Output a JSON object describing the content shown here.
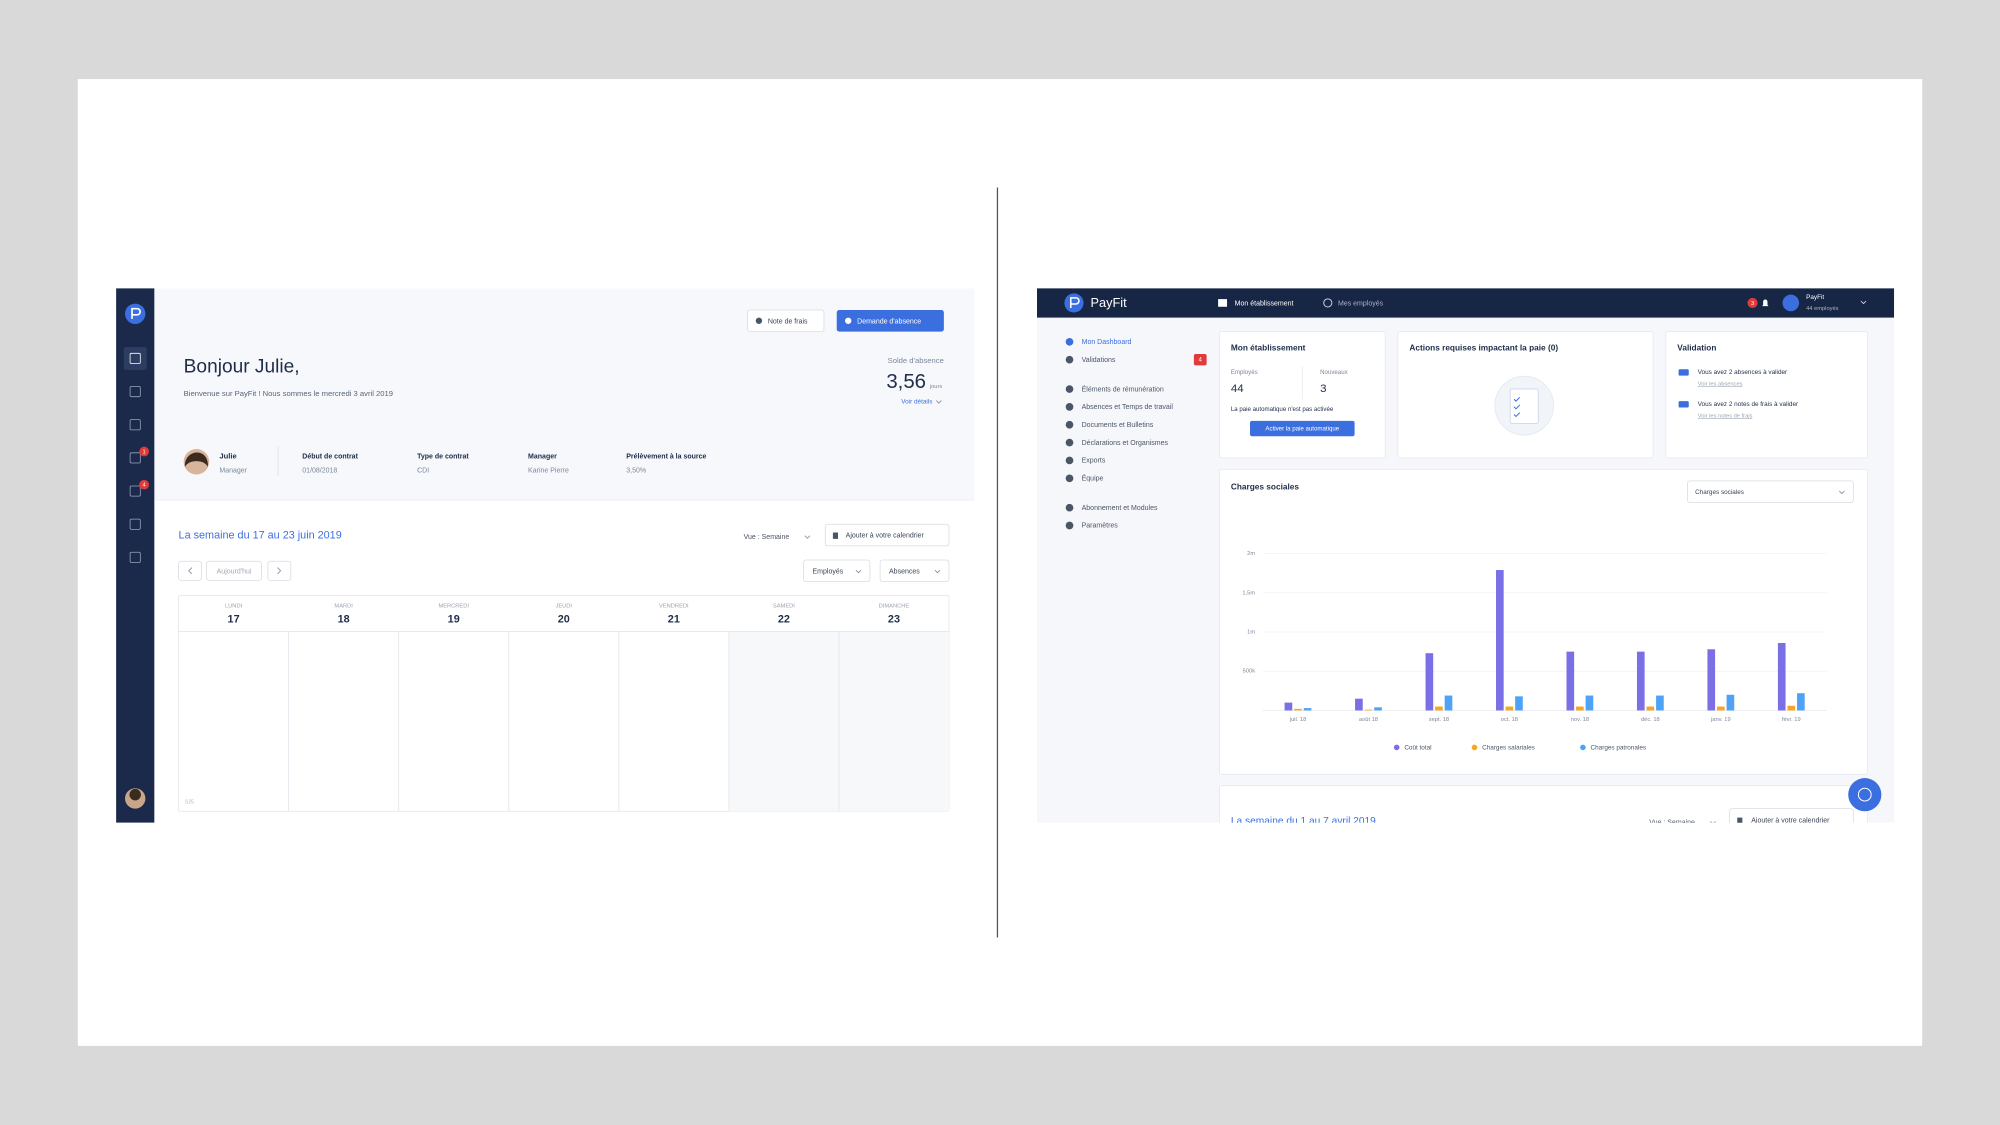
{
  "left_screen": {
    "buttons": [
      "Note de frais",
      "Demande d'absence"
    ],
    "greeting": "Bonjour Julie,",
    "welcome": "Bienvenue sur PayFit ! Nous sommes le mercredi 3 avril 2019",
    "balance": {
      "label": "Solde d'absence",
      "value": "3,56",
      "unit": "jours",
      "link": "Voir détails"
    },
    "sidebar_badges": [
      "1",
      "4"
    ],
    "profile": {
      "name": "Julie",
      "role": "Manager",
      "fields": [
        {
          "label": "Début de contrat",
          "value": "01/08/2018"
        },
        {
          "label": "Type de contrat",
          "value": "CDI"
        },
        {
          "label": "Manager",
          "value": "Karine Pierre"
        },
        {
          "label": "Prélèvement à la source",
          "value": "3,50%"
        }
      ]
    },
    "calendar": {
      "title": "La semaine du 17 au 23 juin 2019",
      "view": "Vue : Semaine",
      "add": "Ajouter à votre calendrier",
      "today": "Aujourd'hui",
      "filters": [
        "Employés",
        "Absences"
      ],
      "days": [
        {
          "name": "LUNDI",
          "date": 17
        },
        {
          "name": "MARDI",
          "date": 18
        },
        {
          "name": "MERCREDI",
          "date": 19
        },
        {
          "name": "JEUDI",
          "date": 20
        },
        {
          "name": "VENDREDI",
          "date": 21
        },
        {
          "name": "SAMEDI",
          "date": 22
        },
        {
          "name": "DIMANCHE",
          "date": 23
        }
      ],
      "week": "S25"
    }
  },
  "right_screen": {
    "brand": "PayFit",
    "nav": [
      "Mon établissement",
      "Mes employés"
    ],
    "notifications": "3",
    "account": {
      "name": "PayFit",
      "sub": "44 employés"
    },
    "menu": [
      "Mon Dashboard",
      "Validations",
      "Éléments de rémunération",
      "Absences et Temps de travail",
      "Documents et Bulletins",
      "Déclarations et Organismes",
      "Exports",
      "Équipe",
      "Abonnement et Modules",
      "Paramètres"
    ],
    "menu_badge": "4",
    "establishment": {
      "title": "Mon établissement",
      "employees_label": "Employés",
      "employees": 44,
      "new_label": "Nouveaux",
      "new": 3,
      "notice": "La paie automatique n'est pas activée",
      "button": "Activer la paie automatique"
    },
    "actions_title": "Actions requises impactant la paie (0)",
    "validation": {
      "title": "Validation",
      "items": [
        {
          "text": "Vous avez 2 absences à valider",
          "link": "Voir les absences"
        },
        {
          "text": "Vous avez 2 notes de frais à valider",
          "link": "Voir les notes de frais"
        }
      ]
    },
    "chart_select": "Charges sociales",
    "calendar": {
      "title": "La semaine du 1 au 7 avril 2019",
      "view": "Vue : Semaine",
      "add": "Ajouter à votre calendrier"
    }
  },
  "chart_data": {
    "type": "bar",
    "title": "Charges sociales",
    "categories": [
      "juil. 18",
      "août 18",
      "sept. 18",
      "oct. 18",
      "nov. 18",
      "déc. 18",
      "janv. 19",
      "févr. 19"
    ],
    "series": [
      {
        "name": "Coût total",
        "color": "#7b6fe6",
        "values": [
          100000,
          150000,
          730000,
          1790000,
          750000,
          750000,
          780000,
          860000
        ]
      },
      {
        "name": "Charges salariales",
        "color": "#f5a623",
        "values": [
          20000,
          10000,
          50000,
          50000,
          50000,
          50000,
          50000,
          60000
        ]
      },
      {
        "name": "Charges patronales",
        "color": "#4fa3f7",
        "values": [
          30000,
          40000,
          190000,
          180000,
          190000,
          190000,
          200000,
          220000
        ]
      }
    ],
    "ylim": [
      0,
      2000000
    ],
    "yticks": [
      {
        "value": 500000,
        "label": "500k"
      },
      {
        "value": 1000000,
        "label": "1m"
      },
      {
        "value": 1500000,
        "label": "1,5m"
      },
      {
        "value": 2000000,
        "label": "2m"
      }
    ],
    "grid": true
  }
}
